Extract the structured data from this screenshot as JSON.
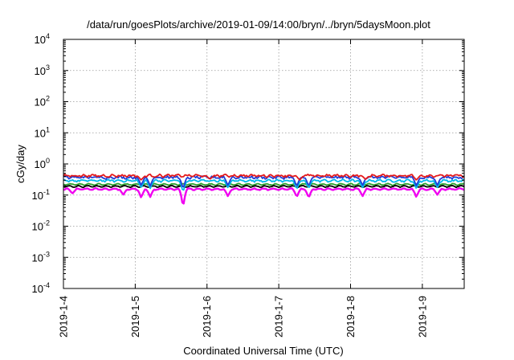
{
  "chart_data": {
    "type": "line",
    "title": "/data/run/goesPlots/archive/2019-01-09/14:00/bryn/../bryn/5daysMoon.plot",
    "xlabel": "Coordinated Universal Time (UTC)",
    "ylabel": "cGy/day",
    "yscale": "log",
    "ylim": [
      0.0001,
      10000
    ],
    "xlim": [
      "2019-01-04",
      "2019-01-09T14:00"
    ],
    "grid": true,
    "legend": "none",
    "x_tick_labels": [
      "2019-1-4",
      "2019-1-5",
      "2019-1-6",
      "2019-1-7",
      "2019-1-8",
      "2019-1-9"
    ],
    "y_ticks": [
      {
        "value": 0.0001,
        "base": "10",
        "exp": "-4"
      },
      {
        "value": 0.001,
        "base": "10",
        "exp": "-3"
      },
      {
        "value": 0.01,
        "base": "10",
        "exp": "-2"
      },
      {
        "value": 0.1,
        "base": "10",
        "exp": "-1"
      },
      {
        "value": 1,
        "base": "10",
        "exp": "0"
      },
      {
        "value": 10,
        "base": "10",
        "exp": "1"
      },
      {
        "value": 100,
        "base": "10",
        "exp": "2"
      },
      {
        "value": 1000,
        "base": "10",
        "exp": "3"
      },
      {
        "value": 10000,
        "base": "10",
        "exp": "4"
      }
    ],
    "series": [
      {
        "color": "#e41a1c",
        "typical": 0.42,
        "noise": 0.07,
        "dips": [
          {
            "x": "2019-01-05T02:00",
            "value": 0.3
          },
          {
            "x": "2019-01-06T01:00",
            "value": 0.32
          },
          {
            "x": "2019-01-07T07:00",
            "value": 0.3
          },
          {
            "x": "2019-01-08T05:00",
            "value": 0.32
          },
          {
            "x": "2019-01-08T22:00",
            "value": 0.3
          }
        ]
      },
      {
        "color": "#1f3fd9",
        "typical": 0.37,
        "noise": 0.08,
        "dips": [
          {
            "x": "2019-01-05T02:00",
            "value": 0.2
          },
          {
            "x": "2019-01-05T05:00",
            "value": 0.19
          },
          {
            "x": "2019-01-05T16:00",
            "value": 0.15
          },
          {
            "x": "2019-01-06T07:00",
            "value": 0.2
          },
          {
            "x": "2019-01-07T06:00",
            "value": 0.18
          },
          {
            "x": "2019-01-07T10:00",
            "value": 0.19
          },
          {
            "x": "2019-01-08T04:00",
            "value": 0.2
          },
          {
            "x": "2019-01-08T22:00",
            "value": 0.19
          },
          {
            "x": "2019-01-09T05:00",
            "value": 0.2
          }
        ]
      },
      {
        "color": "#00b7eb",
        "typical": 0.29,
        "noise": 0.06,
        "dips": [
          {
            "x": "2019-01-05T02:00",
            "value": 0.17
          },
          {
            "x": "2019-01-05T05:00",
            "value": 0.16
          },
          {
            "x": "2019-01-05T16:00",
            "value": 0.12
          },
          {
            "x": "2019-01-06T07:00",
            "value": 0.17
          },
          {
            "x": "2019-01-07T06:00",
            "value": 0.15
          },
          {
            "x": "2019-01-07T10:00",
            "value": 0.16
          },
          {
            "x": "2019-01-08T04:00",
            "value": 0.17
          },
          {
            "x": "2019-01-08T22:00",
            "value": 0.16
          },
          {
            "x": "2019-01-09T05:00",
            "value": 0.17
          }
        ]
      },
      {
        "color": "#2ca02c",
        "typical": 0.22,
        "noise": 0.025,
        "dips": []
      },
      {
        "color": "#000000",
        "typical": 0.19,
        "noise": 0.02,
        "dips": []
      },
      {
        "color": "#f000f0",
        "typical": 0.155,
        "noise": 0.025,
        "dips": [
          {
            "x": "2019-01-04T03:00",
            "value": 0.11
          },
          {
            "x": "2019-01-04T20:00",
            "value": 0.1
          },
          {
            "x": "2019-01-05T02:00",
            "value": 0.08
          },
          {
            "x": "2019-01-05T05:00",
            "value": 0.085
          },
          {
            "x": "2019-01-05T16:00",
            "value": 0.035
          },
          {
            "x": "2019-01-06T07:00",
            "value": 0.09
          },
          {
            "x": "2019-01-07T06:00",
            "value": 0.085
          },
          {
            "x": "2019-01-07T10:00",
            "value": 0.08
          },
          {
            "x": "2019-01-08T04:00",
            "value": 0.09
          },
          {
            "x": "2019-01-08T22:00",
            "value": 0.085
          },
          {
            "x": "2019-01-09T05:00",
            "value": 0.1
          }
        ]
      }
    ]
  }
}
